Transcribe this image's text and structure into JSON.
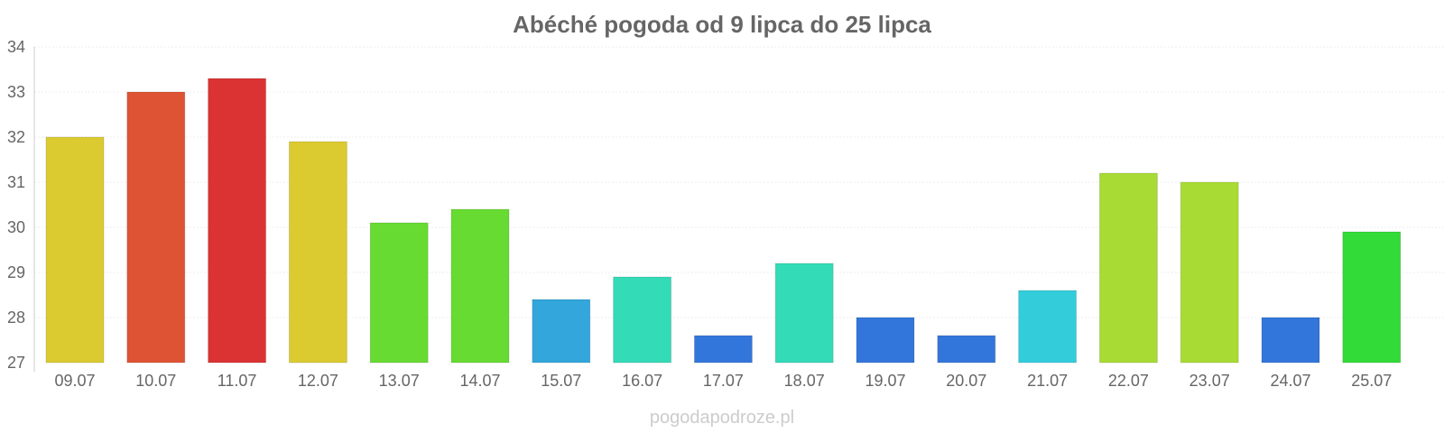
{
  "chart_data": {
    "type": "bar",
    "title": "Abéché pogoda od 9 lipca do 25 lipca",
    "xlabel": "",
    "ylabel": "",
    "categories": [
      "09.07",
      "10.07",
      "11.07",
      "12.07",
      "13.07",
      "14.07",
      "15.07",
      "16.07",
      "17.07",
      "18.07",
      "19.07",
      "20.07",
      "21.07",
      "22.07",
      "23.07",
      "24.07",
      "25.07"
    ],
    "values": [
      32.0,
      33.0,
      33.3,
      31.9,
      30.1,
      30.4,
      28.4,
      28.9,
      27.6,
      29.2,
      28.0,
      27.6,
      28.6,
      31.2,
      31.0,
      28.0,
      29.9
    ],
    "bar_colors": [
      "#dbcb30",
      "#dd5333",
      "#db3333",
      "#dbcb30",
      "#68db33",
      "#68db33",
      "#33a6db",
      "#33dbb7",
      "#3376db",
      "#33dbb7",
      "#3376db",
      "#3376db",
      "#33ccdb",
      "#a8db33",
      "#a8db33",
      "#3376db",
      "#33db38"
    ],
    "ylim": [
      27,
      34
    ],
    "y_ticks": [
      "27",
      "28",
      "29",
      "30",
      "31",
      "32",
      "33",
      "34"
    ],
    "grid": true,
    "legend": "none"
  },
  "watermark": "pogodapodroze.pl",
  "colors": {
    "title": "#666666",
    "tick_label": "#666666",
    "grid": "#eeeeee",
    "axis": "#cccccc",
    "watermark": "#cccccc"
  }
}
